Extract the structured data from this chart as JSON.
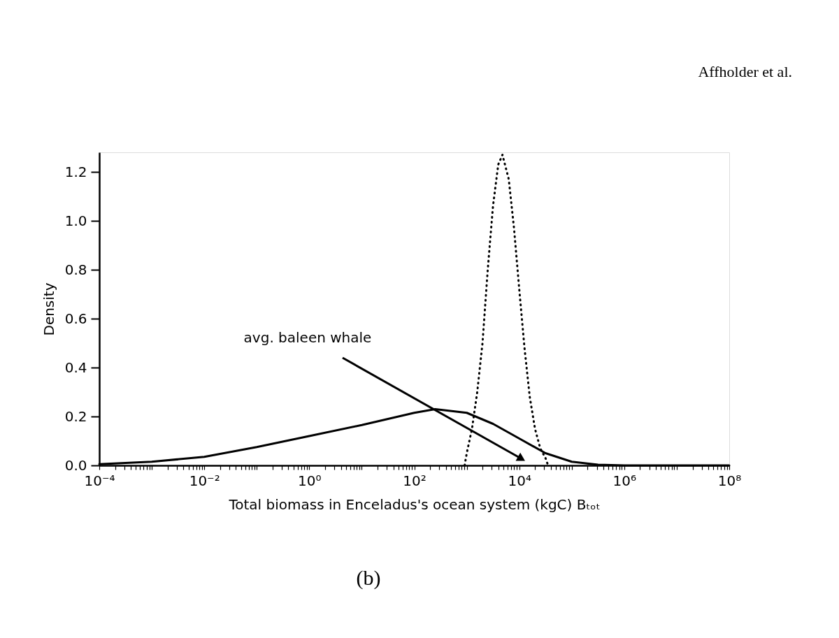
{
  "chart_data": {
    "type": "line",
    "xlabel": "Total biomass in Enceladus's ocean system (kgC) Bₜₒₜ",
    "ylabel": "Density",
    "log": "x",
    "grid": false,
    "marker": "none",
    "xlim": [
      0.0001,
      100000000
    ],
    "ylim": [
      0,
      1.28
    ],
    "xticks": [
      {
        "value": 0.0001,
        "label": "10⁻⁴"
      },
      {
        "value": 0.01,
        "label": "10⁻²"
      },
      {
        "value": 1,
        "label": "10⁰"
      },
      {
        "value": 100,
        "label": "10²"
      },
      {
        "value": 10000,
        "label": "10⁴"
      },
      {
        "value": 1000000,
        "label": "10⁶"
      },
      {
        "value": 100000000,
        "label": "10⁸"
      },
      {
        "value": 0.001,
        "label": null
      },
      {
        "value": 0.1,
        "label": null
      },
      {
        "value": 10,
        "label": null
      },
      {
        "value": 1000,
        "label": null
      },
      {
        "value": 100000,
        "label": null
      },
      {
        "value": 10000000,
        "label": null
      },
      {
        "value": 0.0002,
        "label": null
      },
      {
        "value": 0.0003,
        "label": null
      },
      {
        "value": 0.0004,
        "label": null
      },
      {
        "value": 0.0005,
        "label": null
      },
      {
        "value": 0.0006,
        "label": null
      },
      {
        "value": 0.0007,
        "label": null
      },
      {
        "value": 0.0008,
        "label": null
      },
      {
        "value": 0.0009,
        "label": null
      },
      {
        "value": 0.002,
        "label": null
      },
      {
        "value": 0.003,
        "label": null
      },
      {
        "value": 0.004,
        "label": null
      },
      {
        "value": 0.005,
        "label": null
      },
      {
        "value": 0.006,
        "label": null
      },
      {
        "value": 0.007,
        "label": null
      },
      {
        "value": 0.008,
        "label": null
      },
      {
        "value": 0.009,
        "label": null
      },
      {
        "value": 0.02,
        "label": null
      },
      {
        "value": 0.03,
        "label": null
      },
      {
        "value": 0.04,
        "label": null
      },
      {
        "value": 0.05,
        "label": null
      },
      {
        "value": 0.06,
        "label": null
      },
      {
        "value": 0.07,
        "label": null
      },
      {
        "value": 0.08,
        "label": null
      },
      {
        "value": 0.09,
        "label": null
      },
      {
        "value": 0.2,
        "label": null
      },
      {
        "value": 0.3,
        "label": null
      },
      {
        "value": 0.4,
        "label": null
      },
      {
        "value": 0.5,
        "label": null
      },
      {
        "value": 0.6,
        "label": null
      },
      {
        "value": 0.7,
        "label": null
      },
      {
        "value": 0.8,
        "label": null
      },
      {
        "value": 0.9,
        "label": null
      },
      {
        "value": 2,
        "label": null
      },
      {
        "value": 3,
        "label": null
      },
      {
        "value": 4,
        "label": null
      },
      {
        "value": 5,
        "label": null
      },
      {
        "value": 6,
        "label": null
      },
      {
        "value": 7,
        "label": null
      },
      {
        "value": 8,
        "label": null
      },
      {
        "value": 9,
        "label": null
      },
      {
        "value": 20,
        "label": null
      },
      {
        "value": 30,
        "label": null
      },
      {
        "value": 40,
        "label": null
      },
      {
        "value": 50,
        "label": null
      },
      {
        "value": 60,
        "label": null
      },
      {
        "value": 70,
        "label": null
      },
      {
        "value": 80,
        "label": null
      },
      {
        "value": 90,
        "label": null
      },
      {
        "value": 200,
        "label": null
      },
      {
        "value": 300,
        "label": null
      },
      {
        "value": 400,
        "label": null
      },
      {
        "value": 500,
        "label": null
      },
      {
        "value": 600,
        "label": null
      },
      {
        "value": 700,
        "label": null
      },
      {
        "value": 800,
        "label": null
      },
      {
        "value": 900,
        "label": null
      },
      {
        "value": 2000,
        "label": null
      },
      {
        "value": 3000,
        "label": null
      },
      {
        "value": 4000,
        "label": null
      },
      {
        "value": 5000,
        "label": null
      },
      {
        "value": 6000,
        "label": null
      },
      {
        "value": 7000,
        "label": null
      },
      {
        "value": 8000,
        "label": null
      },
      {
        "value": 9000,
        "label": null
      },
      {
        "value": 20000,
        "label": null
      },
      {
        "value": 30000,
        "label": null
      },
      {
        "value": 40000,
        "label": null
      },
      {
        "value": 50000,
        "label": null
      },
      {
        "value": 60000,
        "label": null
      },
      {
        "value": 70000,
        "label": null
      },
      {
        "value": 80000,
        "label": null
      },
      {
        "value": 90000,
        "label": null
      },
      {
        "value": 200000,
        "label": null
      },
      {
        "value": 300000,
        "label": null
      },
      {
        "value": 400000,
        "label": null
      },
      {
        "value": 500000,
        "label": null
      },
      {
        "value": 600000,
        "label": null
      },
      {
        "value": 700000,
        "label": null
      },
      {
        "value": 800000,
        "label": null
      },
      {
        "value": 900000,
        "label": null
      },
      {
        "value": 2000000,
        "label": null
      },
      {
        "value": 3000000,
        "label": null
      },
      {
        "value": 4000000,
        "label": null
      },
      {
        "value": 5000000,
        "label": null
      },
      {
        "value": 6000000,
        "label": null
      },
      {
        "value": 7000000,
        "label": null
      },
      {
        "value": 8000000,
        "label": null
      },
      {
        "value": 9000000,
        "label": null
      },
      {
        "value": 20000000,
        "label": null
      },
      {
        "value": 30000000,
        "label": null
      },
      {
        "value": 40000000,
        "label": null
      },
      {
        "value": 50000000,
        "label": null
      },
      {
        "value": 60000000,
        "label": null
      },
      {
        "value": 70000000,
        "label": null
      },
      {
        "value": 80000000,
        "label": null
      },
      {
        "value": 90000000,
        "label": null
      }
    ],
    "yticks": [
      {
        "value": 0,
        "label": "0.0"
      },
      {
        "value": 0.2,
        "label": "0.2"
      },
      {
        "value": 0.4,
        "label": "0.4"
      },
      {
        "value": 0.6,
        "label": "0.6"
      },
      {
        "value": 0.8,
        "label": "0.8"
      },
      {
        "value": 1.0,
        "label": "1.0"
      },
      {
        "value": 1.2,
        "label": "1.2"
      }
    ],
    "series": [
      {
        "color": "#000000",
        "line_style": "solid",
        "x": [
          0.0001,
          0.001,
          0.01,
          0.1,
          1,
          10,
          100,
          251,
          1000,
          3162,
          10000,
          31620,
          100000,
          316200,
          1000000,
          100000000
        ],
        "values": [
          0.005,
          0.015,
          0.035,
          0.075,
          0.12,
          0.165,
          0.215,
          0.23,
          0.215,
          0.17,
          0.11,
          0.05,
          0.015,
          0.003,
          0,
          0
        ]
      },
      {
        "color": "#000000",
        "line_style": "dotted",
        "x": [
          912,
          1000,
          1259,
          1585,
          1995,
          2512,
          3162,
          3981,
          4786,
          6310,
          7943,
          10000,
          12590,
          15850,
          19950,
          25120,
          31620,
          35480
        ],
        "values": [
          0,
          0.05,
          0.15,
          0.3,
          0.5,
          0.8,
          1.06,
          1.23,
          1.27,
          1.17,
          0.97,
          0.72,
          0.48,
          0.28,
          0.15,
          0.07,
          0.03,
          0
        ]
      }
    ],
    "annotations": [
      "avg. baleen whale",
      "Affholder et al.",
      "(b)"
    ]
  }
}
